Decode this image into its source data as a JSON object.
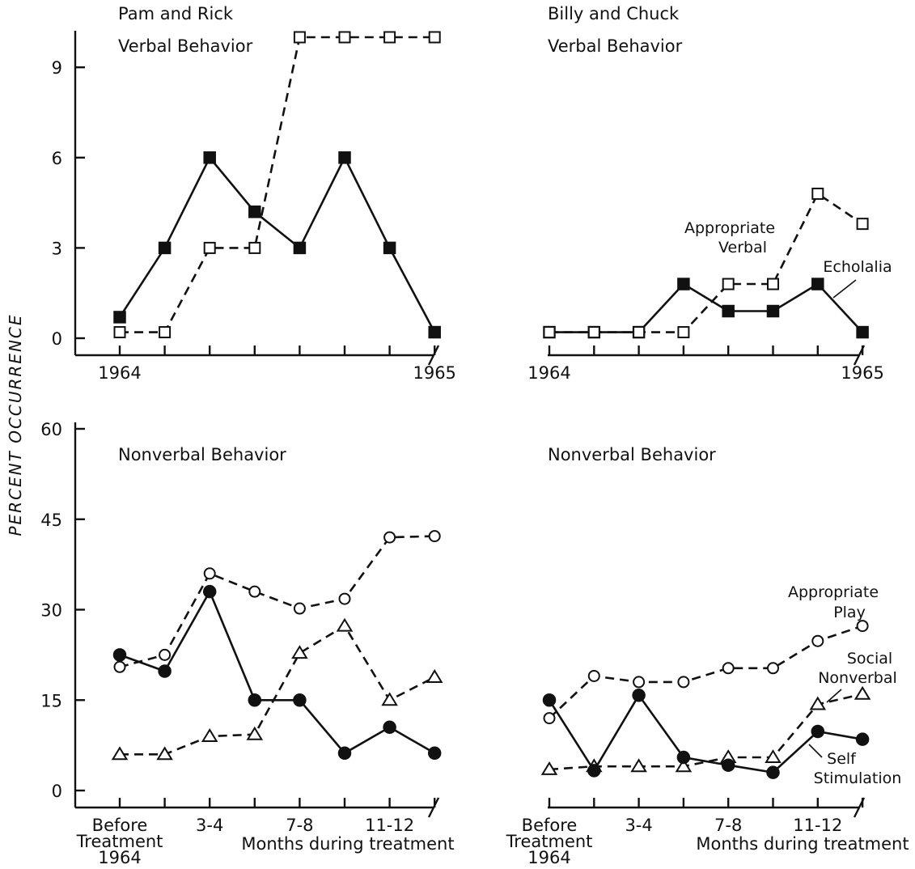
{
  "figure": {
    "ylabel": "PERCENT OCCURRENCE"
  },
  "chart_data": [
    {
      "id": "pam-rick-verbal",
      "type": "line",
      "title_lines": [
        "Pam and Rick",
        "Verbal Behavior"
      ],
      "ylim": [
        0,
        10
      ],
      "yticks": [
        0,
        3,
        6,
        9
      ],
      "x": [
        0,
        1,
        2,
        3,
        4,
        5,
        6,
        7
      ],
      "x_tick_labels": [
        {
          "x": 0,
          "lines": [
            "1964"
          ]
        },
        {
          "x": 7,
          "lines": [
            "1965"
          ]
        }
      ],
      "xlabel": "",
      "series": [
        {
          "marker": "square-filled",
          "line": "solid",
          "values": [
            0.7,
            3,
            6,
            4.2,
            3,
            6,
            3,
            0.2
          ]
        },
        {
          "marker": "square-open",
          "line": "dashed",
          "values": [
            0.2,
            0.2,
            3,
            3,
            10,
            10,
            10,
            10
          ]
        }
      ],
      "annotations": []
    },
    {
      "id": "billy-chuck-verbal",
      "type": "line",
      "title_lines": [
        "Billy and Chuck",
        "Verbal Behavior"
      ],
      "ylim": [
        0,
        10
      ],
      "yticks": [],
      "x": [
        0,
        1,
        2,
        3,
        4,
        5,
        6,
        7
      ],
      "x_tick_labels": [
        {
          "x": 0,
          "lines": [
            "1964"
          ]
        },
        {
          "x": 7,
          "lines": [
            "1965"
          ]
        }
      ],
      "xlabel": "",
      "series": [
        {
          "name": "Echolalia",
          "marker": "square-filled",
          "line": "solid",
          "values": [
            0.2,
            0.2,
            0.2,
            1.8,
            0.9,
            0.9,
            1.8,
            0.2
          ]
        },
        {
          "name": "Appropriate Verbal",
          "marker": "square-open",
          "line": "dashed",
          "values": [
            0.2,
            0.2,
            0.2,
            0.2,
            1.8,
            1.8,
            4.8,
            3.8
          ]
        }
      ],
      "annotations": [
        {
          "lines": [
            "Appropriate",
            "Verbal"
          ]
        },
        {
          "lines": [
            "Echolalia"
          ]
        }
      ]
    },
    {
      "id": "pam-rick-nonverbal",
      "type": "line",
      "title_lines": [
        "Nonverbal Behavior"
      ],
      "ylim": [
        0,
        60
      ],
      "yticks": [
        0,
        15,
        30,
        45,
        60
      ],
      "x": [
        0,
        1,
        2,
        3,
        4,
        5,
        6,
        7
      ],
      "x_tick_labels": [
        {
          "x": 0,
          "lines": [
            "Before",
            "Treatment",
            "1964"
          ]
        },
        {
          "x": 2,
          "lines": [
            "3-4"
          ]
        },
        {
          "x": 4,
          "lines": [
            "7-8"
          ]
        },
        {
          "x": 6,
          "lines": [
            "11-12"
          ]
        }
      ],
      "xlabel": "Months during treatment",
      "series": [
        {
          "marker": "circle-open",
          "line": "dashed",
          "values": [
            20.5,
            22.5,
            36,
            33,
            30.2,
            31.8,
            42,
            42.2
          ]
        },
        {
          "marker": "circle-filled",
          "line": "solid",
          "values": [
            22.5,
            19.8,
            33,
            15,
            15,
            6.2,
            10.5,
            6.2
          ]
        },
        {
          "marker": "triangle-open",
          "line": "dashed",
          "values": [
            6,
            6,
            9,
            9.3,
            22.8,
            27.3,
            15,
            18.8
          ]
        }
      ],
      "annotations": []
    },
    {
      "id": "billy-chuck-nonverbal",
      "type": "line",
      "title_lines": [
        "Nonverbal Behavior"
      ],
      "ylim": [
        0,
        60
      ],
      "yticks": [],
      "x": [
        0,
        1,
        2,
        3,
        4,
        5,
        6,
        7
      ],
      "x_tick_labels": [
        {
          "x": 0,
          "lines": [
            "Before",
            "Treatment",
            "1964"
          ]
        },
        {
          "x": 2,
          "lines": [
            "3-4"
          ]
        },
        {
          "x": 4,
          "lines": [
            "7-8"
          ]
        },
        {
          "x": 6,
          "lines": [
            "11-12"
          ]
        }
      ],
      "xlabel": "Months during treatment",
      "series": [
        {
          "name": "Appropriate Play",
          "marker": "circle-open",
          "line": "dashed",
          "values": [
            12,
            19,
            18,
            18,
            20.3,
            20.3,
            24.8,
            27.3
          ]
        },
        {
          "name": "Social Nonverbal",
          "marker": "triangle-open",
          "line": "dashed",
          "values": [
            3.5,
            4,
            4,
            4,
            5.5,
            5.5,
            14.3,
            16
          ]
        },
        {
          "name": "Self Stimulation",
          "marker": "circle-filled",
          "line": "solid",
          "values": [
            15,
            3.3,
            15.8,
            5.5,
            4.2,
            3,
            9.8,
            8.5
          ]
        }
      ],
      "annotations": [
        {
          "lines": [
            "Appropriate",
            "Play"
          ]
        },
        {
          "lines": [
            "Social",
            "Nonverbal"
          ]
        },
        {
          "lines": [
            "Self",
            "Stimulation"
          ]
        }
      ]
    }
  ]
}
